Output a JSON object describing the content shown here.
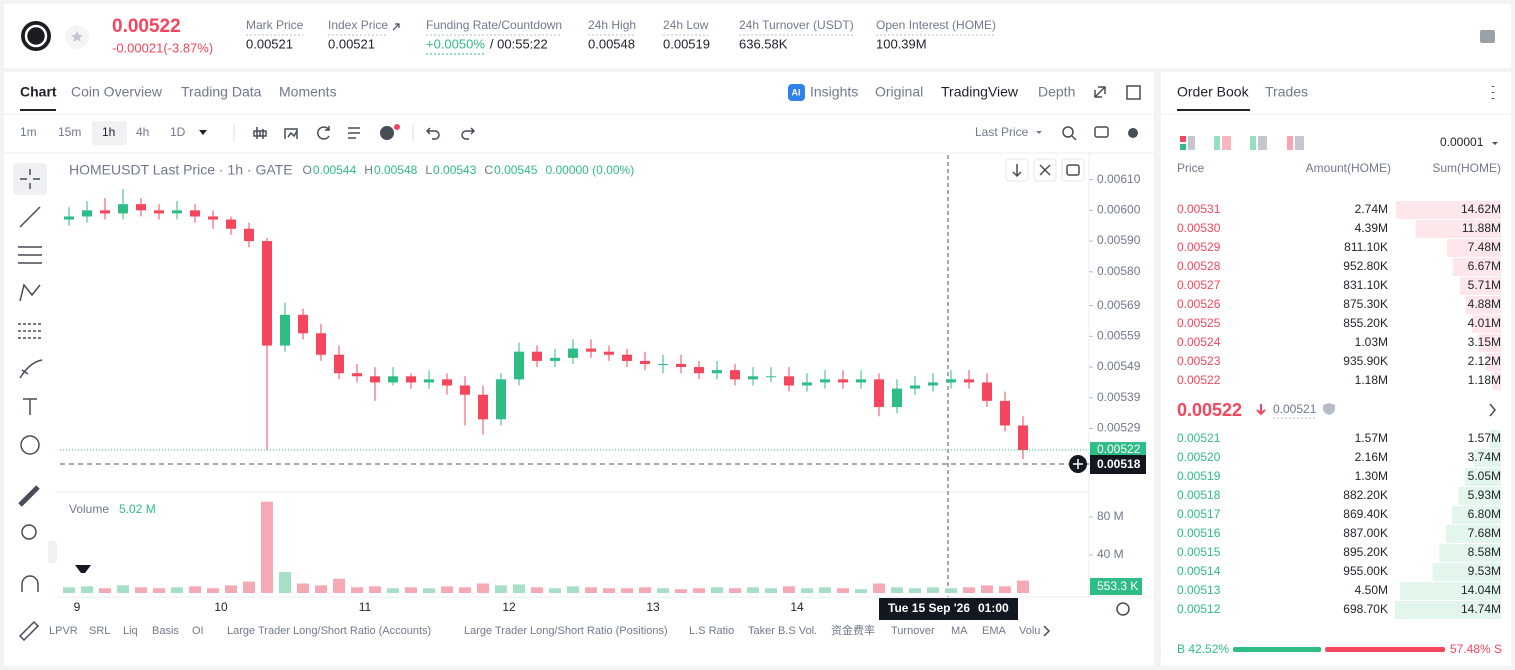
{
  "header": {
    "price": "0.00522",
    "change": "-0.00021(-3.87%)",
    "stats": [
      {
        "label": "Mark Price",
        "value": "0.00521"
      },
      {
        "label": "Index Price",
        "value": "0.00521"
      },
      {
        "label": "Funding Rate/Countdown",
        "value": "+0.0050%",
        "extra": "/ 00:55:22"
      },
      {
        "label": "24h High",
        "value": "0.00548"
      },
      {
        "label": "24h Low",
        "value": "0.00519"
      },
      {
        "label": "24h Turnover (USDT)",
        "value": "636.58K"
      },
      {
        "label": "Open Interest (HOME)",
        "value": "100.39M"
      }
    ]
  },
  "chart_panel": {
    "tabs": [
      "Chart",
      "Coin Overview",
      "Trading Data",
      "Moments"
    ],
    "views": [
      "Insights",
      "Original",
      "TradingView",
      "Depth"
    ],
    "intervals": [
      "1m",
      "15m",
      "1h",
      "4h",
      "1D"
    ],
    "price_source": "Last Price",
    "legend": {
      "symbol": "HOMEUSDT Last Price · 1h · GATE",
      "ohlc": [
        {
          "key": "O",
          "value": "0.00544"
        },
        {
          "key": "H",
          "value": "0.00548"
        },
        {
          "key": "L",
          "value": "0.00543"
        },
        {
          "key": "C",
          "value": "0.00545"
        }
      ],
      "change": "0.00000 (0.00%)"
    },
    "volume_title": "Volume",
    "volume_value": "5.02 M",
    "last_price_tag": "0.00522",
    "cursor_price": "0.00518",
    "current_volume": "553.3 K",
    "crosshair_time": "Tue 15 Sep '26",
    "crosshair_hour": "01:00",
    "indicators": [
      "LPVR",
      "SRL",
      "Liq",
      "Basis",
      "OI",
      "Large Trader Long/Short Ratio (Accounts)",
      "Large Trader Long/Short Ratio (Positions)",
      "L.S Ratio",
      "Taker B.S Vol.",
      "资金费率",
      "Turnover",
      "MA",
      "EMA",
      "Volu"
    ]
  },
  "chart": {
    "type": "candlestick",
    "up_color": "#2ebd85",
    "down_color": "#f6465d",
    "volume_up_color": "#a6dfc6",
    "volume_down_color": "#f5a9b5",
    "x_labels": [
      "9",
      "10",
      "11",
      "12",
      "13",
      "14"
    ],
    "open": [
      0.00597,
      0.00598,
      0.006,
      0.00599,
      0.00602,
      0.006,
      0.00599,
      0.006,
      0.00598,
      0.00597,
      0.00594,
      0.0059,
      0.00556,
      0.00566,
      0.0056,
      0.00553,
      0.00547,
      0.00546,
      0.00544,
      0.00546,
      0.00544,
      0.00545,
      0.00543,
      0.0054,
      0.00532,
      0.00545,
      0.00554,
      0.00551,
      0.00552,
      0.00555,
      0.00554,
      0.00553,
      0.00551,
      0.0055,
      0.0055,
      0.00549,
      0.00547,
      0.00548,
      0.00545,
      0.00546,
      0.00546,
      0.00543,
      0.00544,
      0.00545,
      0.00544,
      0.00545,
      0.00536,
      0.00542,
      0.00543,
      0.00544,
      0.00545,
      0.00544,
      0.00538,
      0.0053
    ],
    "high": [
      0.00601,
      0.00603,
      0.00604,
      0.00607,
      0.00604,
      0.00602,
      0.00603,
      0.00602,
      0.006,
      0.00598,
      0.00596,
      0.00591,
      0.0057,
      0.00568,
      0.00563,
      0.00556,
      0.0055,
      0.00549,
      0.00549,
      0.00547,
      0.00548,
      0.00547,
      0.00546,
      0.00543,
      0.00547,
      0.00557,
      0.00556,
      0.00555,
      0.00558,
      0.00558,
      0.00556,
      0.00555,
      0.00554,
      0.00553,
      0.00553,
      0.00551,
      0.00551,
      0.0055,
      0.00549,
      0.00549,
      0.00549,
      0.00547,
      0.00548,
      0.00548,
      0.00548,
      0.00547,
      0.00545,
      0.00546,
      0.00547,
      0.00548,
      0.00548,
      0.00547,
      0.00541,
      0.00533
    ],
    "low": [
      0.00595,
      0.00596,
      0.00597,
      0.00597,
      0.00598,
      0.00597,
      0.00597,
      0.00596,
      0.00594,
      0.00592,
      0.00588,
      0.00522,
      0.00554,
      0.00558,
      0.00551,
      0.00545,
      0.00544,
      0.00538,
      0.00543,
      0.00542,
      0.00542,
      0.0054,
      0.0053,
      0.00527,
      0.0053,
      0.00543,
      0.00549,
      0.00549,
      0.0055,
      0.00552,
      0.00551,
      0.00549,
      0.00548,
      0.00547,
      0.00547,
      0.00545,
      0.00545,
      0.00543,
      0.00543,
      0.00544,
      0.00541,
      0.00541,
      0.00542,
      0.00542,
      0.00542,
      0.00533,
      0.00534,
      0.0054,
      0.00541,
      0.00542,
      0.00542,
      0.00536,
      0.00528,
      0.00519
    ],
    "close": [
      0.00598,
      0.006,
      0.00599,
      0.00602,
      0.006,
      0.00599,
      0.006,
      0.00598,
      0.00597,
      0.00594,
      0.0059,
      0.00556,
      0.00566,
      0.0056,
      0.00553,
      0.00547,
      0.00546,
      0.00544,
      0.00546,
      0.00544,
      0.00545,
      0.00543,
      0.0054,
      0.00532,
      0.00545,
      0.00554,
      0.00551,
      0.00552,
      0.00555,
      0.00554,
      0.00553,
      0.00551,
      0.0055,
      0.0055,
      0.00549,
      0.00547,
      0.00548,
      0.00545,
      0.00546,
      0.00546,
      0.00543,
      0.00544,
      0.00545,
      0.00544,
      0.00545,
      0.00536,
      0.00542,
      0.00543,
      0.00544,
      0.00545,
      0.00544,
      0.00538,
      0.0053,
      0.00522
    ],
    "volume": [
      6,
      7,
      5,
      8,
      6,
      5,
      6,
      7,
      5,
      8,
      12,
      96,
      22,
      10,
      8,
      15,
      6,
      7,
      5,
      6,
      5,
      7,
      6,
      10,
      8,
      9,
      6,
      5,
      7,
      6,
      5,
      5,
      6,
      5,
      4,
      5,
      6,
      5,
      6,
      5,
      7,
      5,
      6,
      5,
      4,
      10,
      6,
      5,
      6,
      5,
      6,
      8,
      7,
      13
    ],
    "ylim": [
      0.00509,
      0.00618
    ],
    "yticks": [
      {
        "value": 0.0061,
        "label": "0.00610"
      },
      {
        "value": 0.006,
        "label": "0.00600"
      },
      {
        "value": 0.0059,
        "label": "0.00590"
      },
      {
        "value": 0.0058,
        "label": "0.00580"
      },
      {
        "value": 0.00569,
        "label": "0.00569"
      },
      {
        "value": 0.00559,
        "label": "0.00559"
      },
      {
        "value": 0.00549,
        "label": "0.00549"
      },
      {
        "value": 0.00539,
        "label": "0.00539"
      },
      {
        "value": 0.00529,
        "label": "0.00529"
      }
    ],
    "volume_ylim": [
      0,
      103
    ],
    "volume_yticks": [
      {
        "value": 80,
        "label": "80 M"
      },
      {
        "value": 40,
        "label": "40 M"
      }
    ]
  },
  "order_book": {
    "tabs": [
      "Order Book",
      "Trades"
    ],
    "precision": "0.00001",
    "columns": [
      "Price",
      "Amount(HOME)",
      "Sum(HOME)"
    ],
    "asks": [
      [
        "0.00531",
        "2.74M",
        "14.62M"
      ],
      [
        "0.00530",
        "4.39M",
        "11.88M"
      ],
      [
        "0.00529",
        "811.10K",
        "7.48M"
      ],
      [
        "0.00528",
        "952.80K",
        "6.67M"
      ],
      [
        "0.00527",
        "831.10K",
        "5.71M"
      ],
      [
        "0.00526",
        "875.30K",
        "4.88M"
      ],
      [
        "0.00525",
        "855.20K",
        "4.01M"
      ],
      [
        "0.00524",
        "1.03M",
        "3.15M"
      ],
      [
        "0.00523",
        "935.90K",
        "2.12M"
      ],
      [
        "0.00522",
        "1.18M",
        "1.18M"
      ]
    ],
    "mid_price": "0.00522",
    "mark_price": "0.00521",
    "bids": [
      [
        "0.00521",
        "1.57M",
        "1.57M"
      ],
      [
        "0.00520",
        "2.16M",
        "3.74M"
      ],
      [
        "0.00519",
        "1.30M",
        "5.05M"
      ],
      [
        "0.00518",
        "882.20K",
        "5.93M"
      ],
      [
        "0.00517",
        "869.40K",
        "6.80M"
      ],
      [
        "0.00516",
        "887.00K",
        "7.68M"
      ],
      [
        "0.00515",
        "895.20K",
        "8.58M"
      ],
      [
        "0.00514",
        "955.00K",
        "9.53M"
      ],
      [
        "0.00513",
        "4.50M",
        "14.04M"
      ],
      [
        "0.00512",
        "698.70K",
        "14.74M"
      ]
    ],
    "buy": {
      "value": 42.52,
      "label": "B 42.52%"
    },
    "sell": {
      "value": 57.48,
      "label": "57.48% S"
    }
  }
}
